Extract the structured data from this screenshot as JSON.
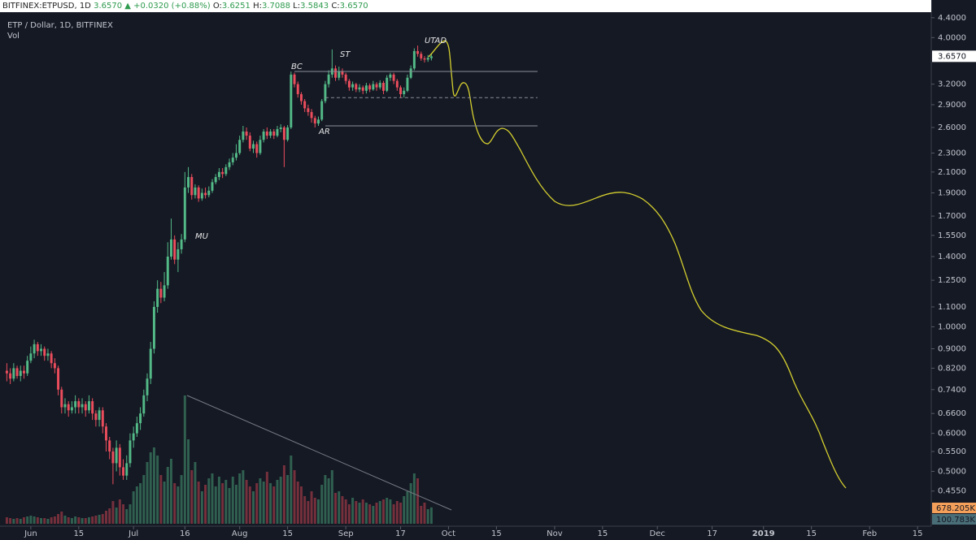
{
  "header": {
    "symbol": "BITFINEX:ETPUSD, 1D",
    "last": "3.6570",
    "change": "▲ +0.0320 (+0.88%)",
    "ohlc": [
      {
        "k": "O:",
        "v": "3.6251"
      },
      {
        "k": "H:",
        "v": "3.7088"
      },
      {
        "k": "L:",
        "v": "3.5843"
      },
      {
        "k": "C:",
        "v": "3.6570"
      }
    ]
  },
  "chart_data": {
    "type": "candlestick",
    "legend_title": "ETP / Dollar, 1D, BITFINEX",
    "volume_label": "Vol",
    "up_color": "#53b987",
    "down_color": "#eb4d5c",
    "log": true,
    "x": [
      "May 25",
      "May 26",
      "May 27",
      "May 28",
      "May 29",
      "May 30",
      "May 31",
      "Jun 1",
      "Jun 2",
      "Jun 3",
      "Jun 4",
      "Jun 5",
      "Jun 6",
      "Jun 7",
      "Jun 8",
      "Jun 9",
      "Jun 10",
      "Jun 11",
      "Jun 12",
      "Jun 13",
      "Jun 14",
      "Jun 15",
      "Jun 16",
      "Jun 17",
      "Jun 18",
      "Jun 19",
      "Jun 20",
      "Jun 21",
      "Jun 22",
      "Jun 23",
      "Jun 24",
      "Jun 25",
      "Jun 26",
      "Jun 27",
      "Jun 28",
      "Jun 29",
      "Jun 30",
      "Jul 1",
      "Jul 2",
      "Jul 3",
      "Jul 4",
      "Jul 5",
      "Jul 6",
      "Jul 7",
      "Jul 8",
      "Jul 9",
      "Jul 10",
      "Jul 11",
      "Jul 12",
      "Jul 13",
      "Jul 14",
      "Jul 15",
      "Jul 16",
      "Jul 17",
      "Jul 18",
      "Jul 19",
      "Jul 20",
      "Jul 21",
      "Jul 22",
      "Jul 23",
      "Jul 24",
      "Jul 25",
      "Jul 26",
      "Jul 27",
      "Jul 28",
      "Jul 29",
      "Jul 30",
      "Jul 31",
      "Aug 1",
      "Aug 2",
      "Aug 3",
      "Aug 4",
      "Aug 5",
      "Aug 6",
      "Aug 7",
      "Aug 8",
      "Aug 9",
      "Aug 10",
      "Aug 11",
      "Aug 12",
      "Aug 13",
      "Aug 14",
      "Aug 15",
      "Aug 16",
      "Aug 17",
      "Aug 18",
      "Aug 19",
      "Aug 20",
      "Aug 21",
      "Aug 22",
      "Aug 23",
      "Aug 24",
      "Aug 25",
      "Aug 26",
      "Aug 27",
      "Aug 28",
      "Aug 29",
      "Aug 30",
      "Aug 31",
      "Sep 1",
      "Sep 2",
      "Sep 3",
      "Sep 4",
      "Sep 5",
      "Sep 6",
      "Sep 7",
      "Sep 8",
      "Sep 9",
      "Sep 10",
      "Sep 11",
      "Sep 12",
      "Sep 13",
      "Sep 14",
      "Sep 15",
      "Sep 16",
      "Sep 17",
      "Sep 18",
      "Sep 19",
      "Sep 20",
      "Sep 21",
      "Sep 22",
      "Sep 23",
      "Sep 24",
      "Sep 25",
      "Sep 26"
    ],
    "open": [
      0.81,
      0.8,
      0.78,
      0.82,
      0.79,
      0.81,
      0.8,
      0.85,
      0.88,
      0.92,
      0.89,
      0.9,
      0.87,
      0.88,
      0.84,
      0.82,
      0.74,
      0.68,
      0.69,
      0.67,
      0.68,
      0.7,
      0.68,
      0.69,
      0.67,
      0.7,
      0.66,
      0.64,
      0.67,
      0.62,
      0.58,
      0.55,
      0.52,
      0.56,
      0.51,
      0.49,
      0.52,
      0.58,
      0.6,
      0.63,
      0.66,
      0.72,
      0.78,
      0.9,
      1.1,
      1.2,
      1.15,
      1.22,
      1.4,
      1.52,
      1.38,
      1.45,
      1.52,
      1.95,
      2.05,
      1.88,
      1.95,
      1.85,
      1.9,
      1.88,
      1.92,
      2.0,
      2.05,
      2.1,
      2.08,
      2.15,
      2.2,
      2.25,
      2.3,
      2.45,
      2.55,
      2.5,
      2.35,
      2.4,
      2.3,
      2.45,
      2.55,
      2.5,
      2.55,
      2.5,
      2.58,
      2.6,
      2.45,
      2.6,
      3.35,
      3.2,
      3.05,
      2.95,
      2.85,
      2.8,
      2.72,
      2.65,
      2.7,
      2.95,
      3.2,
      3.35,
      3.45,
      3.3,
      3.4,
      3.35,
      3.25,
      3.15,
      3.2,
      3.12,
      3.15,
      3.1,
      3.18,
      3.12,
      3.2,
      3.15,
      3.22,
      3.1,
      3.3,
      3.35,
      3.25,
      3.15,
      3.05,
      3.1,
      3.3,
      3.45,
      3.75,
      3.7,
      3.62,
      3.6,
      3.6251
    ],
    "high": [
      0.84,
      0.82,
      0.84,
      0.83,
      0.83,
      0.83,
      0.87,
      0.91,
      0.94,
      0.93,
      0.92,
      0.91,
      0.9,
      0.89,
      0.86,
      0.83,
      0.75,
      0.71,
      0.7,
      0.7,
      0.72,
      0.71,
      0.71,
      0.7,
      0.72,
      0.71,
      0.67,
      0.68,
      0.68,
      0.63,
      0.59,
      0.56,
      0.58,
      0.57,
      0.53,
      0.54,
      0.6,
      0.62,
      0.65,
      0.68,
      0.74,
      0.8,
      0.93,
      1.13,
      1.25,
      1.24,
      1.3,
      1.5,
      1.68,
      1.55,
      1.5,
      1.56,
      2.1,
      2.15,
      2.08,
      1.98,
      1.97,
      1.94,
      1.95,
      1.96,
      2.03,
      2.08,
      2.14,
      2.14,
      2.18,
      2.24,
      2.3,
      2.4,
      2.5,
      2.62,
      2.6,
      2.54,
      2.44,
      2.43,
      2.5,
      2.58,
      2.6,
      2.58,
      2.58,
      2.62,
      2.64,
      2.62,
      2.63,
      3.4,
      3.38,
      3.24,
      3.08,
      2.98,
      2.9,
      2.84,
      2.75,
      2.74,
      2.98,
      3.25,
      3.42,
      3.78,
      3.5,
      3.48,
      3.45,
      3.38,
      3.28,
      3.24,
      3.22,
      3.2,
      3.18,
      3.22,
      3.21,
      3.25,
      3.23,
      3.26,
      3.25,
      3.34,
      3.38,
      3.38,
      3.28,
      3.18,
      3.15,
      3.35,
      3.5,
      3.8,
      3.85,
      3.74,
      3.66,
      3.68,
      3.7088
    ],
    "low": [
      0.77,
      0.76,
      0.77,
      0.78,
      0.77,
      0.78,
      0.79,
      0.84,
      0.86,
      0.87,
      0.87,
      0.85,
      0.85,
      0.82,
      0.8,
      0.72,
      0.66,
      0.66,
      0.65,
      0.66,
      0.66,
      0.66,
      0.66,
      0.65,
      0.66,
      0.64,
      0.62,
      0.62,
      0.6,
      0.55,
      0.53,
      0.47,
      0.5,
      0.49,
      0.48,
      0.48,
      0.51,
      0.56,
      0.59,
      0.61,
      0.65,
      0.7,
      0.76,
      0.88,
      1.07,
      1.12,
      1.13,
      1.2,
      1.38,
      1.35,
      1.3,
      1.42,
      1.5,
      1.9,
      1.84,
      1.85,
      1.82,
      1.83,
      1.85,
      1.86,
      1.9,
      1.98,
      2.02,
      2.04,
      2.06,
      2.12,
      2.17,
      2.22,
      2.28,
      2.42,
      2.45,
      2.32,
      2.3,
      2.25,
      2.28,
      2.42,
      2.46,
      2.47,
      2.46,
      2.48,
      2.54,
      2.15,
      2.43,
      2.58,
      3.15,
      3.0,
      2.9,
      2.8,
      2.75,
      2.66,
      2.6,
      2.62,
      2.68,
      2.92,
      3.15,
      3.3,
      3.25,
      3.26,
      3.3,
      3.2,
      3.1,
      3.1,
      3.08,
      3.08,
      3.05,
      3.06,
      3.08,
      3.1,
      3.1,
      3.12,
      3.05,
      3.08,
      3.25,
      3.2,
      3.1,
      3.0,
      3.0,
      3.08,
      3.28,
      3.42,
      3.65,
      3.58,
      3.55,
      3.56,
      3.5843
    ],
    "close": [
      0.8,
      0.78,
      0.82,
      0.79,
      0.81,
      0.8,
      0.85,
      0.88,
      0.92,
      0.89,
      0.9,
      0.87,
      0.88,
      0.84,
      0.82,
      0.74,
      0.68,
      0.69,
      0.67,
      0.68,
      0.7,
      0.68,
      0.69,
      0.67,
      0.7,
      0.66,
      0.64,
      0.67,
      0.62,
      0.58,
      0.55,
      0.52,
      0.56,
      0.51,
      0.49,
      0.52,
      0.58,
      0.6,
      0.63,
      0.66,
      0.72,
      0.78,
      0.9,
      1.1,
      1.2,
      1.15,
      1.22,
      1.4,
      1.52,
      1.38,
      1.45,
      1.52,
      1.95,
      2.05,
      1.88,
      1.95,
      1.85,
      1.9,
      1.88,
      1.92,
      2.0,
      2.05,
      2.1,
      2.08,
      2.15,
      2.2,
      2.25,
      2.3,
      2.45,
      2.55,
      2.5,
      2.35,
      2.4,
      2.3,
      2.45,
      2.55,
      2.5,
      2.55,
      2.5,
      2.58,
      2.6,
      2.45,
      2.6,
      3.35,
      3.2,
      3.05,
      2.95,
      2.85,
      2.8,
      2.72,
      2.65,
      2.7,
      2.95,
      3.2,
      3.35,
      3.45,
      3.3,
      3.4,
      3.35,
      3.25,
      3.15,
      3.2,
      3.12,
      3.15,
      3.1,
      3.18,
      3.12,
      3.2,
      3.15,
      3.22,
      3.1,
      3.3,
      3.35,
      3.25,
      3.15,
      3.05,
      3.1,
      3.3,
      3.45,
      3.75,
      3.7,
      3.62,
      3.6,
      3.63,
      3.657
    ],
    "volume": [
      40,
      35,
      30,
      35,
      30,
      40,
      45,
      50,
      45,
      40,
      35,
      35,
      30,
      40,
      45,
      60,
      75,
      50,
      40,
      35,
      45,
      40,
      35,
      35,
      40,
      45,
      50,
      55,
      60,
      80,
      95,
      140,
      100,
      150,
      120,
      90,
      120,
      200,
      230,
      250,
      300,
      380,
      440,
      470,
      420,
      300,
      260,
      350,
      400,
      250,
      230,
      300,
      790,
      520,
      330,
      380,
      260,
      200,
      240,
      280,
      310,
      230,
      290,
      250,
      270,
      220,
      290,
      240,
      310,
      330,
      270,
      230,
      200,
      250,
      280,
      260,
      320,
      250,
      230,
      270,
      290,
      360,
      300,
      420,
      330,
      260,
      230,
      170,
      140,
      200,
      160,
      150,
      240,
      300,
      280,
      330,
      190,
      200,
      170,
      150,
      120,
      160,
      140,
      130,
      150,
      130,
      120,
      110,
      130,
      140,
      150,
      160,
      150,
      120,
      140,
      130,
      170,
      200,
      250,
      310,
      280,
      110,
      130,
      90,
      100.783
    ],
    "volume_ylim": [
      0,
      3225
    ],
    "volume_markers": [
      {
        "value": 100.783,
        "label": "100.783K",
        "color": "#4a6e78"
      },
      {
        "value": 678.205,
        "label": "678.205K",
        "color": "#f5a05a"
      }
    ],
    "xlim": [
      "May 23",
      "Feb 19"
    ],
    "xticks": [
      {
        "value": "Jun 1",
        "label": "Jun"
      },
      {
        "value": "Jun 15",
        "label": "15"
      },
      {
        "value": "Jul 1",
        "label": "Jul"
      },
      {
        "value": "Jul 16",
        "label": "16"
      },
      {
        "value": "Aug 1",
        "label": "Aug"
      },
      {
        "value": "Aug 15",
        "label": "15"
      },
      {
        "value": "Sep 1",
        "label": "Sep"
      },
      {
        "value": "Sep 17",
        "label": "17"
      },
      {
        "value": "Oct 1",
        "label": "Oct"
      },
      {
        "value": "Oct 15",
        "label": "15"
      },
      {
        "value": "Nov 1",
        "label": "Nov"
      },
      {
        "value": "Nov 15",
        "label": "15"
      },
      {
        "value": "Dec 1",
        "label": "Dec"
      },
      {
        "value": "Dec 17",
        "label": "17"
      },
      {
        "value": "Jan 1",
        "label": "2019"
      },
      {
        "value": "Jan 15",
        "label": "15"
      },
      {
        "value": "Feb 1",
        "label": "Feb"
      },
      {
        "value": "Feb 15",
        "label": "15"
      }
    ],
    "ylim": [
      0.389,
      4.79
    ],
    "yticks": [
      {
        "value": 4.4,
        "label": "4.4000"
      },
      {
        "value": 4.0,
        "label": "4.0000"
      },
      {
        "value": 3.2,
        "label": "3.2000"
      },
      {
        "value": 2.9,
        "label": "2.9000"
      },
      {
        "value": 2.6,
        "label": "2.6000"
      },
      {
        "value": 2.3,
        "label": "2.3000"
      },
      {
        "value": 2.1,
        "label": "2.1000"
      },
      {
        "value": 1.9,
        "label": "1.9000"
      },
      {
        "value": 1.7,
        "label": "1.7000"
      },
      {
        "value": 1.55,
        "label": "1.5500"
      },
      {
        "value": 1.4,
        "label": "1.4000"
      },
      {
        "value": 1.25,
        "label": "1.2500"
      },
      {
        "value": 1.1,
        "label": "1.1000"
      },
      {
        "value": 1.0,
        "label": "1.0000"
      },
      {
        "value": 0.9,
        "label": "0.9000"
      },
      {
        "value": 0.82,
        "label": "0.8200"
      },
      {
        "value": 0.74,
        "label": "0.7400"
      },
      {
        "value": 0.66,
        "label": "0.6600"
      },
      {
        "value": 0.6,
        "label": "0.6000"
      },
      {
        "value": 0.55,
        "label": "0.5500"
      },
      {
        "value": 0.5,
        "label": "0.5000"
      },
      {
        "value": 0.455,
        "label": "0.4550"
      }
    ],
    "last_price": {
      "value": 3.657,
      "label": "3.6570"
    },
    "levels": [
      {
        "value": 3.4,
        "from": "Aug 17",
        "to": "Oct 27",
        "style": "solid"
      },
      {
        "value": 3.0,
        "from": "Aug 26",
        "to": "Oct 27",
        "style": "dashed"
      },
      {
        "value": 2.62,
        "from": "Aug 26",
        "to": "Oct 27",
        "style": "solid"
      }
    ],
    "annotations": [
      "BC",
      "ST",
      "AR",
      "UTAD",
      "MU"
    ]
  }
}
